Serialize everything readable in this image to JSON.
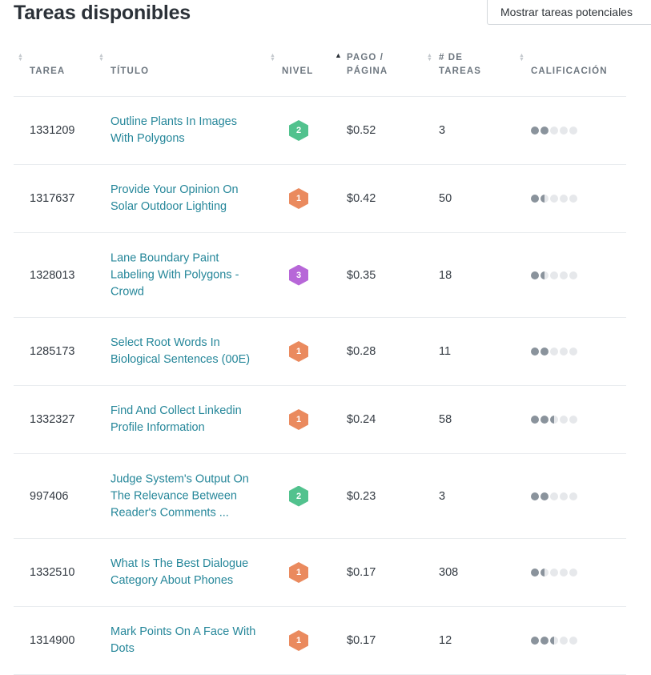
{
  "page": {
    "title": "Tareas disponibles",
    "potential_button": "Mostrar tareas potenciales"
  },
  "columns": {
    "task": "TAREA",
    "title": "TÍTULO",
    "level": "NIVEL",
    "pay_line1": "PAGO /",
    "pay_line2": "PÁGINA",
    "count_line1": "# DE",
    "count_line2": "TAREAS",
    "rating": "CALIFICACIÓN"
  },
  "sort": {
    "active_column": "pay",
    "direction": "ascending-arrow-up"
  },
  "level_colors": {
    "1": "#ea8a5e",
    "2": "#52c28e",
    "3": "#b767d8"
  },
  "rows": [
    {
      "id": "1331209",
      "title": "Outline Plants In Images With Polygons",
      "level": "2",
      "pay": "$0.52",
      "count": "3",
      "rating": 2
    },
    {
      "id": "1317637",
      "title": "Provide Your Opinion On Solar Outdoor Lighting",
      "level": "1",
      "pay": "$0.42",
      "count": "50",
      "rating": 1.5
    },
    {
      "id": "1328013",
      "title": "Lane Boundary Paint Labeling With Polygons - Crowd",
      "level": "3",
      "pay": "$0.35",
      "count": "18",
      "rating": 1.5
    },
    {
      "id": "1285173",
      "title": "Select Root Words In Biological Sentences (00E)",
      "level": "1",
      "pay": "$0.28",
      "count": "11",
      "rating": 2
    },
    {
      "id": "1332327",
      "title": "Find And Collect Linkedin Profile Information",
      "level": "1",
      "pay": "$0.24",
      "count": "58",
      "rating": 2.5
    },
    {
      "id": "997406",
      "title": "Judge System's Output On The Relevance Between Reader's Comments ...",
      "level": "2",
      "pay": "$0.23",
      "count": "3",
      "rating": 2
    },
    {
      "id": "1332510",
      "title": "What Is The Best Dialogue Category About Phones",
      "level": "1",
      "pay": "$0.17",
      "count": "308",
      "rating": 1.5
    },
    {
      "id": "1314900",
      "title": "Mark Points On A Face With Dots",
      "level": "1",
      "pay": "$0.17",
      "count": "12",
      "rating": 2.5
    }
  ]
}
